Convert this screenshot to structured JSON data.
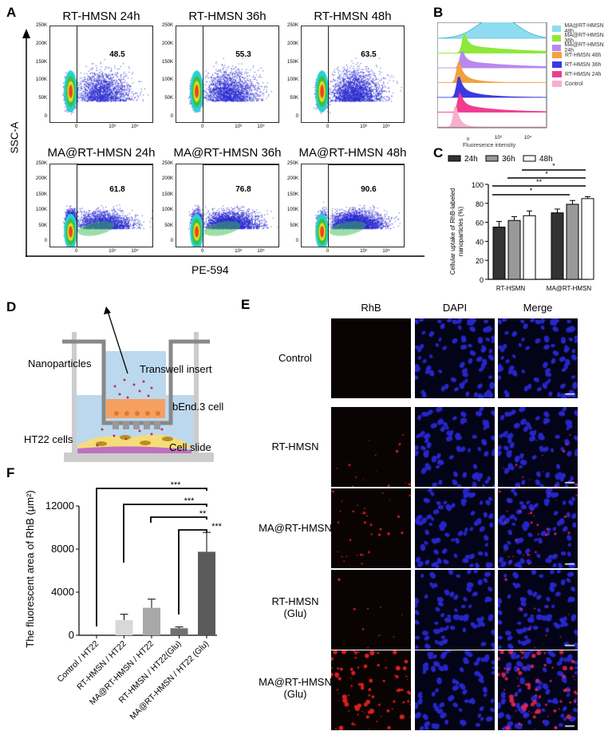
{
  "panel_labels": {
    "a": "A",
    "b": "B",
    "c": "C",
    "d": "D",
    "e": "E",
    "f": "F"
  },
  "panelA": {
    "ylabel": "SSC-A",
    "xlabel": "PE-594",
    "y_ticks": [
      "250K",
      "200K",
      "150K",
      "100K",
      "50K",
      "0"
    ],
    "x_ticks": [
      "0",
      "10³",
      "10⁴"
    ],
    "plots": [
      {
        "title": "RT-HMSN 24h",
        "gate_value": "48.5"
      },
      {
        "title": "RT-HMSN 36h",
        "gate_value": "55.3"
      },
      {
        "title": "RT-HMSN 48h",
        "gate_value": "63.5"
      },
      {
        "title": "MA@RT-HMSN 24h",
        "gate_value": "61.8"
      },
      {
        "title": "MA@RT-HMSN 36h",
        "gate_value": "76.8"
      },
      {
        "title": "MA@RT-HMSN 48h",
        "gate_value": "90.6"
      }
    ]
  },
  "panelB": {
    "xlabel": "Fluoresence intensity",
    "x_ticks": [
      "0",
      "10³",
      "10⁴"
    ],
    "legend": [
      {
        "label": "MA@RT-HMSN 48h",
        "color": "#8fdcf0"
      },
      {
        "label": "MA@RT-HMSN 36h",
        "color": "#8ee83a"
      },
      {
        "label": "MA@RT-HMSN 24h",
        "color": "#b888ee"
      },
      {
        "label": "RT-HMSN 48h",
        "color": "#f5a040"
      },
      {
        "label": "RT-HMSN 36h",
        "color": "#3a3ae0"
      },
      {
        "label": "RT-HMSN 24h",
        "color": "#f03c90"
      },
      {
        "label": "Control",
        "color": "#f5b0cc"
      }
    ]
  },
  "chart_data": [
    {
      "type": "bar",
      "panel": "C",
      "categories": [
        "RT-HSMN",
        "MA@RT-HMSN"
      ],
      "series": [
        {
          "name": "24h",
          "values": [
            55,
            70
          ],
          "errors": [
            6,
            4
          ],
          "color": "#333333"
        },
        {
          "name": "36h",
          "values": [
            62,
            79
          ],
          "errors": [
            4,
            4
          ],
          "color": "#999999"
        },
        {
          "name": "48h",
          "values": [
            67,
            85
          ],
          "errors": [
            5,
            2
          ],
          "color": "#ffffff"
        }
      ],
      "ylabel": "Cellular uptake of RhB-labeled nanoparticles (%)",
      "ylim": [
        0,
        100
      ],
      "y_ticks": [
        "0",
        "20",
        "40",
        "60",
        "80",
        "100"
      ],
      "legend_position": "top",
      "significance": [
        "*",
        "*",
        "**",
        "*"
      ]
    },
    {
      "type": "bar",
      "panel": "F",
      "categories": [
        "Control / HT22",
        "RT-HMSN / HT22",
        "MA@RT-HMSN / HT22",
        "RT-HMSN / HT22(Glu)",
        "MA@RT-HMSN / HT22 (Glu)"
      ],
      "values": [
        0,
        1400,
        2550,
        650,
        7750
      ],
      "errors": [
        0,
        550,
        800,
        120,
        1800
      ],
      "colors": [
        "#ffffff",
        "#d8d8d8",
        "#a8a8a8",
        "#707070",
        "#5a5a5a"
      ],
      "ylabel": "The fluorescent area of RhB (μm²)",
      "ylim": [
        0,
        12000
      ],
      "y_ticks": [
        "0",
        "4000",
        "8000",
        "12000"
      ],
      "significance": [
        "***",
        "***",
        "**",
        "***"
      ]
    }
  ],
  "panelD": {
    "nanoparticles": "Nanoparticles",
    "transwell": "Transwell insert",
    "bend3": "bEnd.3 cell",
    "ht22": "HT22 cells",
    "slide": "Cell slide"
  },
  "panelE": {
    "columns": [
      "RhB",
      "DAPI",
      "Merge"
    ],
    "rows": [
      {
        "line1": "Control",
        "line2": "",
        "red": 0
      },
      {
        "line1": "RT-HMSN",
        "line2": "",
        "red": 0.15
      },
      {
        "line1": "MA@RT-HMSN",
        "line2": "",
        "red": 0.35
      },
      {
        "line1": "RT-HMSN",
        "line2": "(Glu)",
        "red": 0.1
      },
      {
        "line1": "MA@RT-HMSN",
        "line2": "(Glu)",
        "red": 1
      }
    ]
  }
}
